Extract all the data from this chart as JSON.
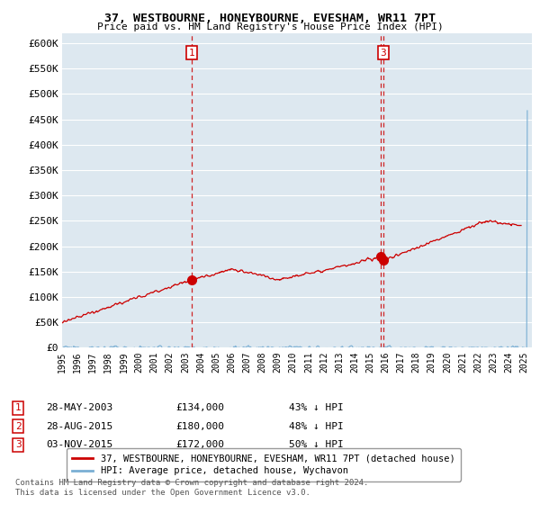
{
  "title": "37, WESTBOURNE, HONEYBOURNE, EVESHAM, WR11 7PT",
  "subtitle": "Price paid vs. HM Land Registry's House Price Index (HPI)",
  "ylabel_ticks": [
    "£0",
    "£50K",
    "£100K",
    "£150K",
    "£200K",
    "£250K",
    "£300K",
    "£350K",
    "£400K",
    "£450K",
    "£500K",
    "£550K",
    "£600K"
  ],
  "ytick_values": [
    0,
    50000,
    100000,
    150000,
    200000,
    250000,
    300000,
    350000,
    400000,
    450000,
    500000,
    550000,
    600000
  ],
  "ylim": [
    0,
    620000
  ],
  "xlim_start": 1995.0,
  "xlim_end": 2025.5,
  "sale_color": "#cc0000",
  "hpi_color": "#7aafd4",
  "sale_label": "37, WESTBOURNE, HONEYBOURNE, EVESHAM, WR11 7PT (detached house)",
  "hpi_label": "HPI: Average price, detached house, Wychavon",
  "transactions": [
    {
      "num": 1,
      "date": "28-MAY-2003",
      "price": 134000,
      "pct": "43%",
      "direction": "↓",
      "year": 2003.41,
      "show_top": true
    },
    {
      "num": 2,
      "date": "28-AUG-2015",
      "price": 180000,
      "pct": "48%",
      "direction": "↓",
      "year": 2015.66,
      "show_top": false
    },
    {
      "num": 3,
      "date": "03-NOV-2015",
      "price": 172000,
      "pct": "50%",
      "direction": "↓",
      "year": 2015.84,
      "show_top": true
    }
  ],
  "footnote": "Contains HM Land Registry data © Crown copyright and database right 2024.\nThis data is licensed under the Open Government Licence v3.0.",
  "background_color": "#ffffff",
  "plot_background": "#dde8f0",
  "grid_color": "#ffffff",
  "dashed_line_color": "#cc0000"
}
